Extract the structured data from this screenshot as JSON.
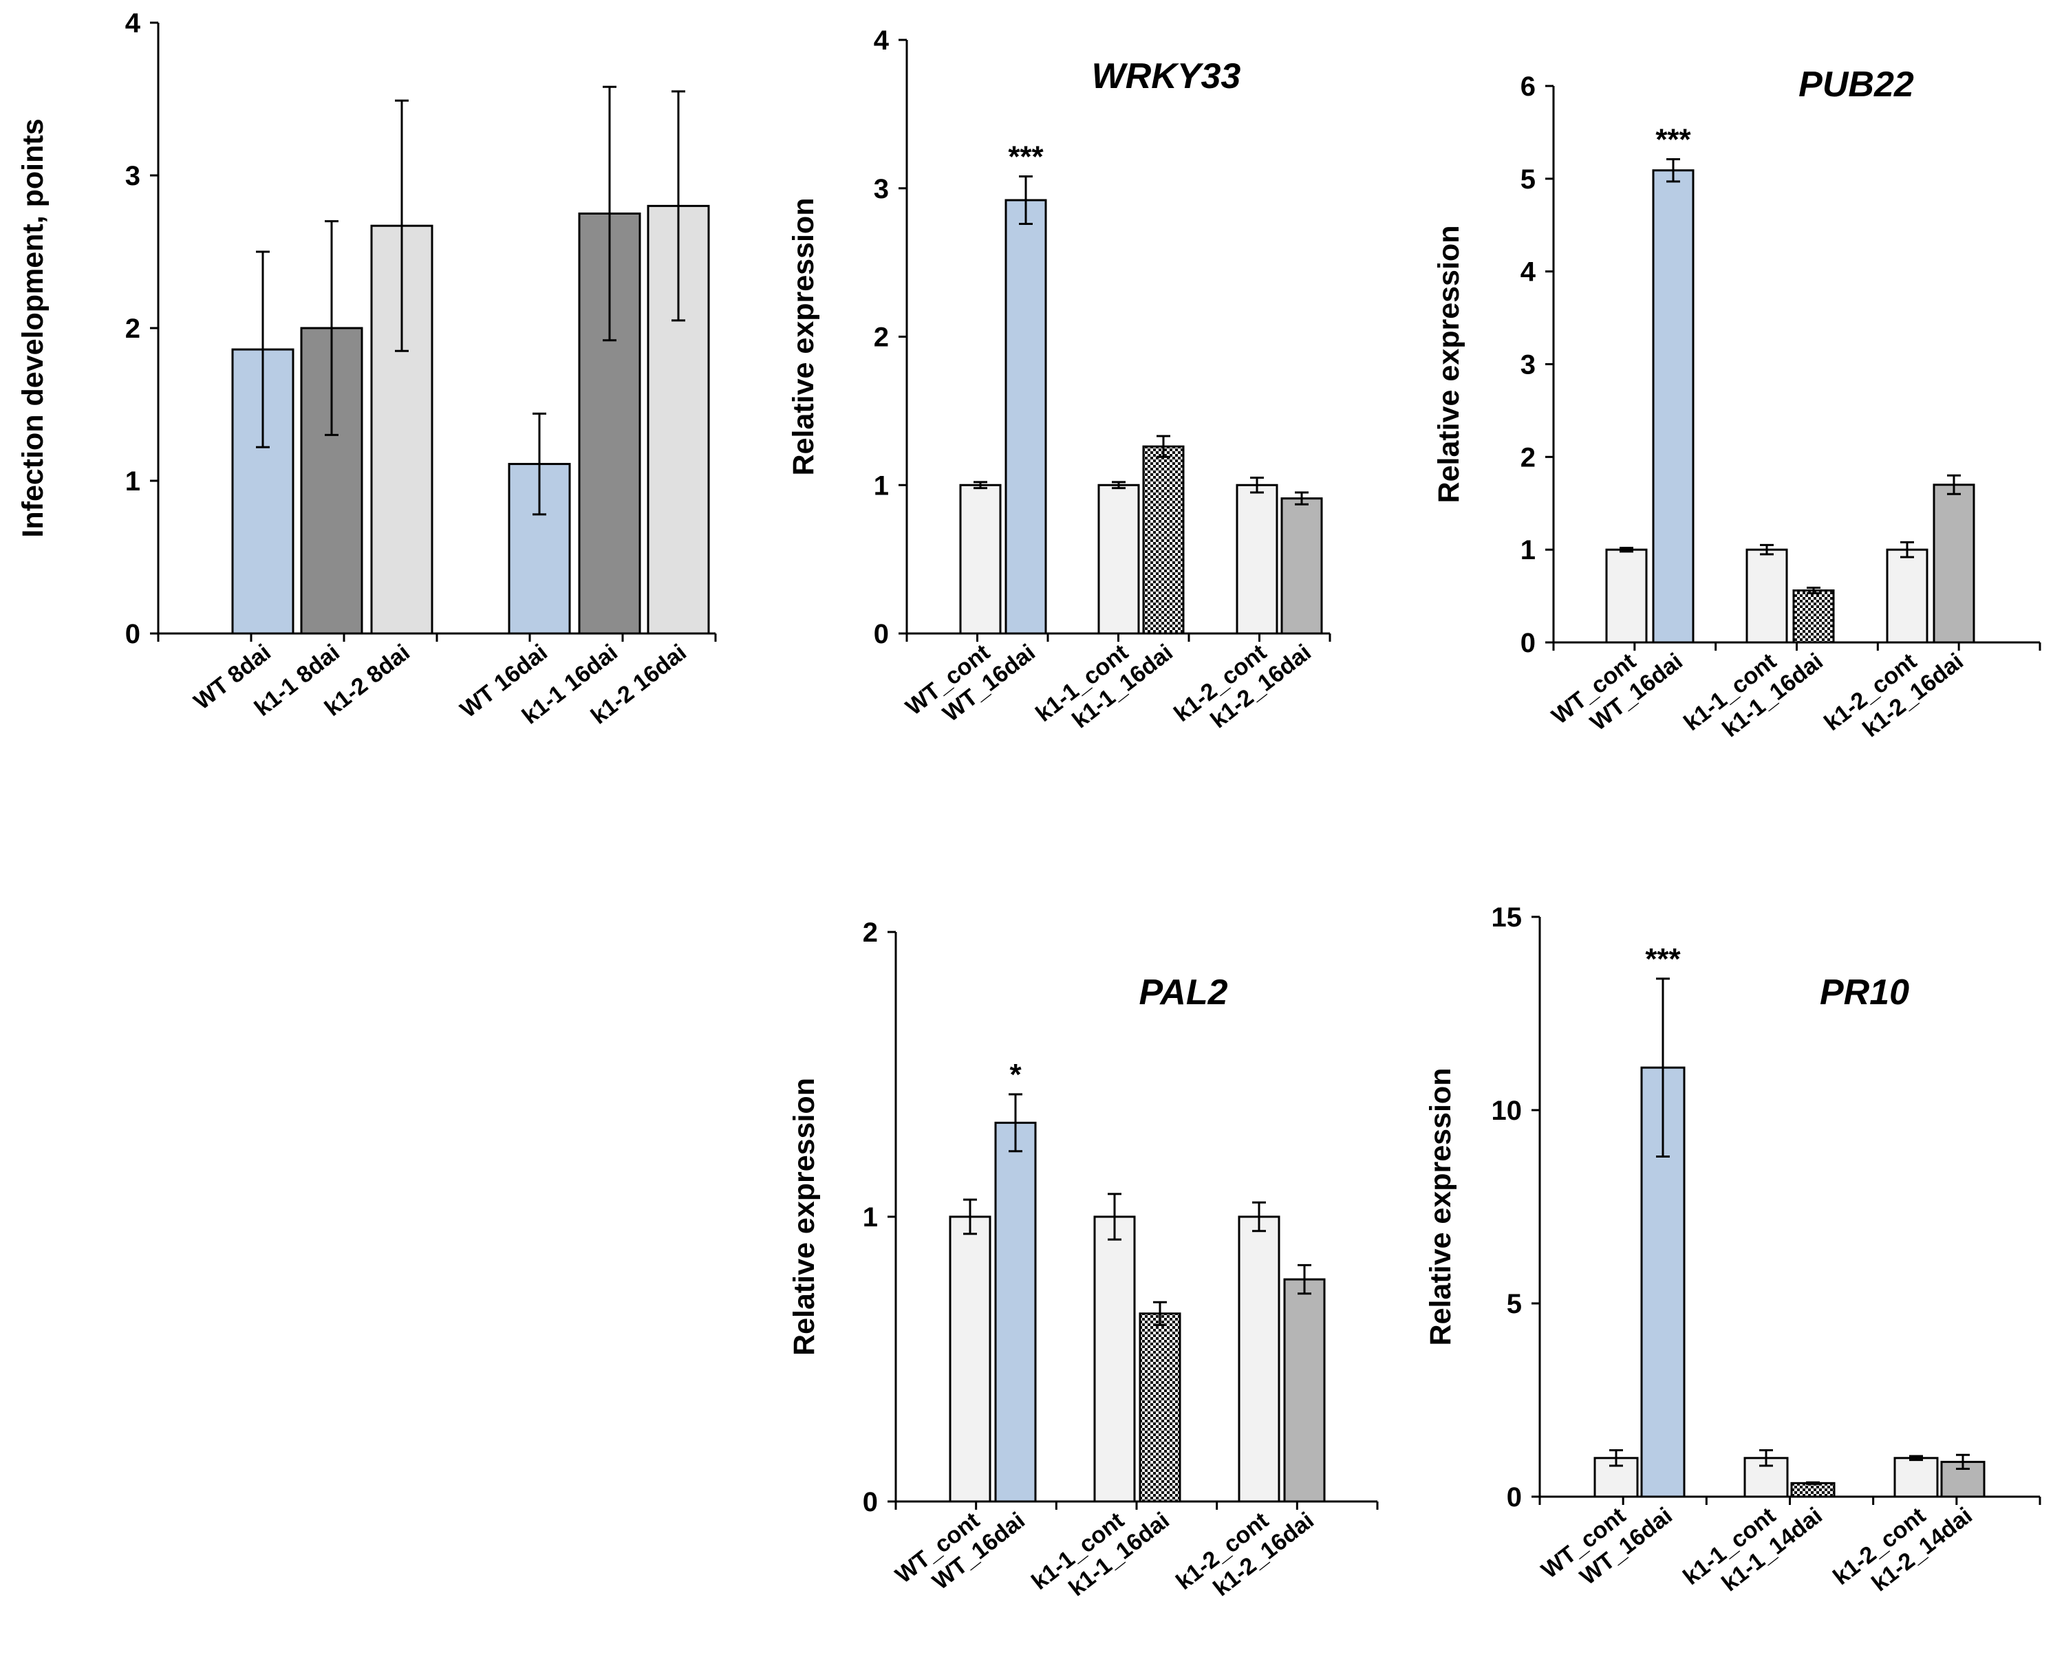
{
  "colors": {
    "white_bar": "#f2f2f2",
    "blue_bar": "#b8cce4",
    "dark_grey_bar": "#8c8c8c",
    "light_grey_bar": "#e0e0e0",
    "mid_grey_bar": "#b5b5b5",
    "checker_dark": "#111111",
    "checker_light": "#ffffff"
  },
  "chart_data": [
    {
      "id": "infection",
      "type": "bar",
      "title": "",
      "xlabel": "",
      "ylabel": "Infection development, points",
      "ylim": [
        0,
        4
      ],
      "yticks": [
        "0",
        "1",
        "2",
        "3",
        "4"
      ],
      "categories": [
        "WT 8dai",
        "k1-1 8dai",
        "k1-2 8dai",
        "WT 16dai",
        "k1-1 16dai",
        "k1-2 16dai"
      ],
      "values": [
        1.86,
        2.0,
        2.67,
        1.11,
        2.75,
        2.8
      ],
      "errors": [
        0.64,
        0.7,
        0.82,
        0.33,
        0.83,
        0.75
      ],
      "styles": [
        "blue",
        "darkgrey",
        "lightgrey",
        "blue",
        "darkgrey",
        "lightgrey"
      ],
      "significance": [
        "",
        "",
        "",
        "",
        "",
        ""
      ]
    },
    {
      "id": "wrky33",
      "type": "bar",
      "title": "WRKY33",
      "xlabel": "",
      "ylabel": "Relative expression",
      "ylim": [
        0,
        4
      ],
      "yticks": [
        "0",
        "1",
        "2",
        "3",
        "4"
      ],
      "categories": [
        "WT_cont",
        "WT_16dai",
        "k1-1_cont",
        "k1-1_16dai",
        "k1-2_cont",
        "k1-2_16dai"
      ],
      "values": [
        1.0,
        2.92,
        1.0,
        1.26,
        1.0,
        0.91
      ],
      "errors": [
        0.02,
        0.16,
        0.02,
        0.07,
        0.05,
        0.04
      ],
      "styles": [
        "white",
        "blue",
        "white",
        "checker",
        "white",
        "midgrey"
      ],
      "significance": [
        "",
        "***",
        "",
        "",
        "",
        ""
      ]
    },
    {
      "id": "pub22",
      "type": "bar",
      "title": "PUB22",
      "xlabel": "",
      "ylabel": "Relative expression",
      "ylim": [
        0,
        6
      ],
      "yticks": [
        "0",
        "1",
        "2",
        "3",
        "4",
        "5",
        "6"
      ],
      "categories": [
        "WT_cont",
        "WT_16dai",
        "k1-1_cont",
        "k1-1_16dai",
        "k1-2_cont",
        "k1-2_16dai"
      ],
      "values": [
        1.0,
        5.09,
        1.0,
        0.56,
        1.0,
        1.7
      ],
      "errors": [
        0.02,
        0.12,
        0.05,
        0.03,
        0.08,
        0.1
      ],
      "styles": [
        "white",
        "blue",
        "white",
        "checker",
        "white",
        "midgrey"
      ],
      "significance": [
        "",
        "***",
        "",
        "",
        "",
        ""
      ]
    },
    {
      "id": "pal2",
      "type": "bar",
      "title": "PAL2",
      "xlabel": "",
      "ylabel": "Relative expression",
      "ylim": [
        0,
        2
      ],
      "yticks": [
        "0",
        "1",
        "2"
      ],
      "categories": [
        "WT_cont",
        "WT_16dai",
        "k1-1_cont",
        "k1-1_16dai",
        "k1-2_cont",
        "k1-2_16dai"
      ],
      "values": [
        1.0,
        1.33,
        1.0,
        0.66,
        1.0,
        0.78
      ],
      "errors": [
        0.06,
        0.1,
        0.08,
        0.04,
        0.05,
        0.05
      ],
      "styles": [
        "white",
        "blue",
        "white",
        "checker",
        "white",
        "midgrey"
      ],
      "significance": [
        "",
        "*",
        "",
        "",
        "",
        ""
      ]
    },
    {
      "id": "pr10",
      "type": "bar",
      "title": "PR10",
      "xlabel": "",
      "ylabel": "Relative expression",
      "ylim": [
        0,
        15
      ],
      "yticks": [
        "0",
        "5",
        "10",
        "15"
      ],
      "categories": [
        "WT_cont",
        "WT_16dai",
        "k1-1_cont",
        "k1-1_14dai",
        "k1-2_cont",
        "k1-2_14dai"
      ],
      "values": [
        1.0,
        11.1,
        1.0,
        0.35,
        1.0,
        0.9
      ],
      "errors": [
        0.2,
        2.3,
        0.2,
        0.02,
        0.05,
        0.18
      ],
      "styles": [
        "white",
        "blue",
        "white",
        "checker",
        "white",
        "midgrey"
      ],
      "significance": [
        "",
        "***",
        "",
        "",
        "",
        ""
      ]
    }
  ]
}
